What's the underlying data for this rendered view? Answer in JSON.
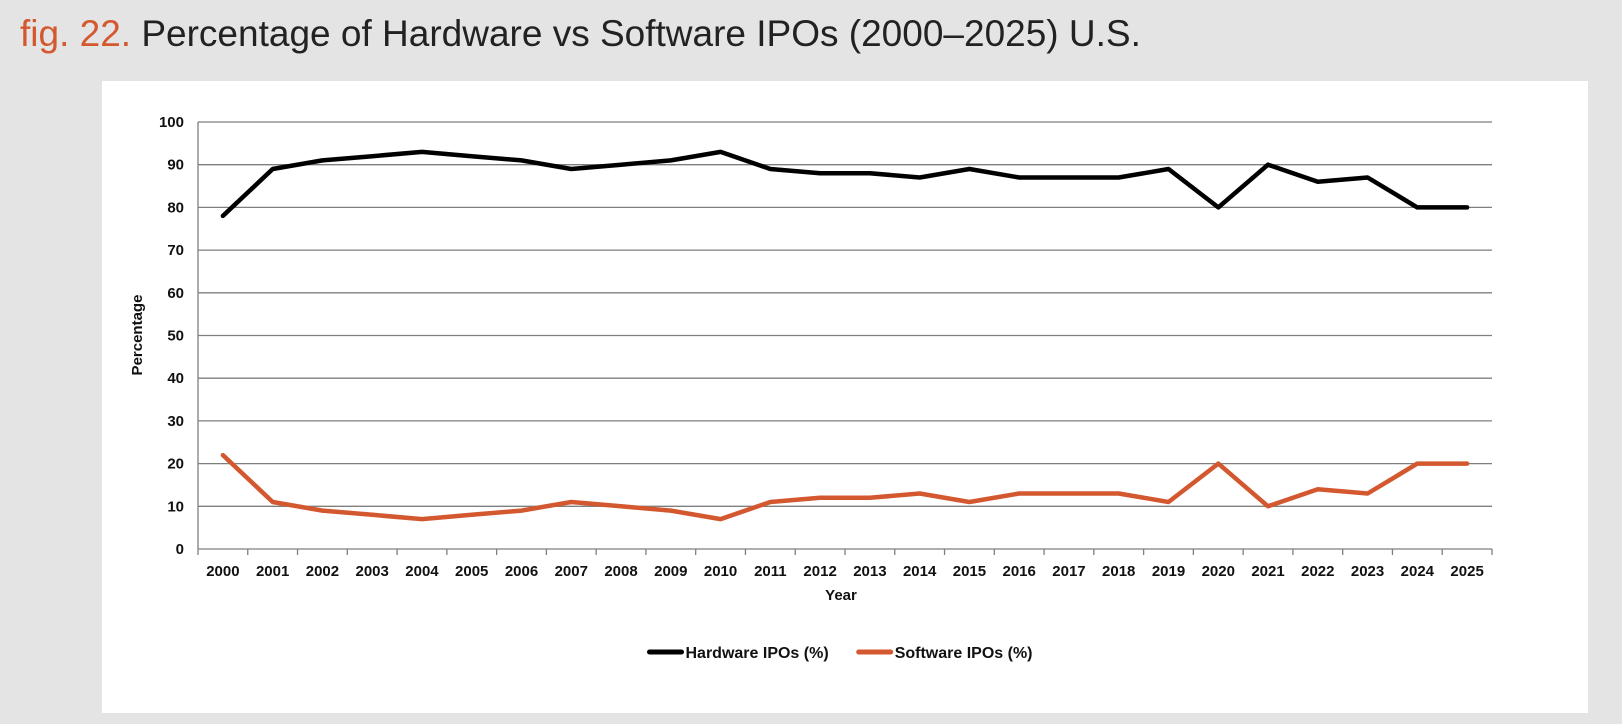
{
  "figure": {
    "number": "fig. 22.",
    "title": "Percentage of Hardware vs Software IPOs (2000–2025) U.S."
  },
  "colors": {
    "accent": "#d4582f",
    "hardware": "#000000",
    "software": "#d4582f",
    "grid": "#7f7f7f"
  },
  "chart_data": {
    "type": "line",
    "title": "",
    "xlabel": "Year",
    "ylabel": "Percentage",
    "ylim": [
      0,
      100
    ],
    "yticks": [
      0,
      10,
      20,
      30,
      40,
      50,
      60,
      70,
      80,
      90,
      100
    ],
    "grid": true,
    "legend_position": "bottom",
    "categories": [
      "2000",
      "2001",
      "2002",
      "2003",
      "2004",
      "2005",
      "2006",
      "2007",
      "2008",
      "2009",
      "2010",
      "2011",
      "2012",
      "2013",
      "2014",
      "2015",
      "2016",
      "2017",
      "2018",
      "2019",
      "2020",
      "2021",
      "2022",
      "2023",
      "2024",
      "2025"
    ],
    "series": [
      {
        "name": "Hardware IPOs (%)",
        "color": "#000000",
        "values": [
          78,
          89,
          91,
          92,
          93,
          92,
          91,
          89,
          90,
          91,
          93,
          89,
          88,
          88,
          87,
          89,
          87,
          87,
          87,
          89,
          80,
          90,
          86,
          87,
          80,
          80
        ]
      },
      {
        "name": "Software IPOs (%)",
        "color": "#d4582f",
        "values": [
          22,
          11,
          9,
          8,
          7,
          8,
          9,
          11,
          10,
          9,
          7,
          11,
          12,
          12,
          13,
          11,
          13,
          13,
          13,
          11,
          20,
          10,
          14,
          13,
          20,
          20
        ]
      }
    ]
  }
}
